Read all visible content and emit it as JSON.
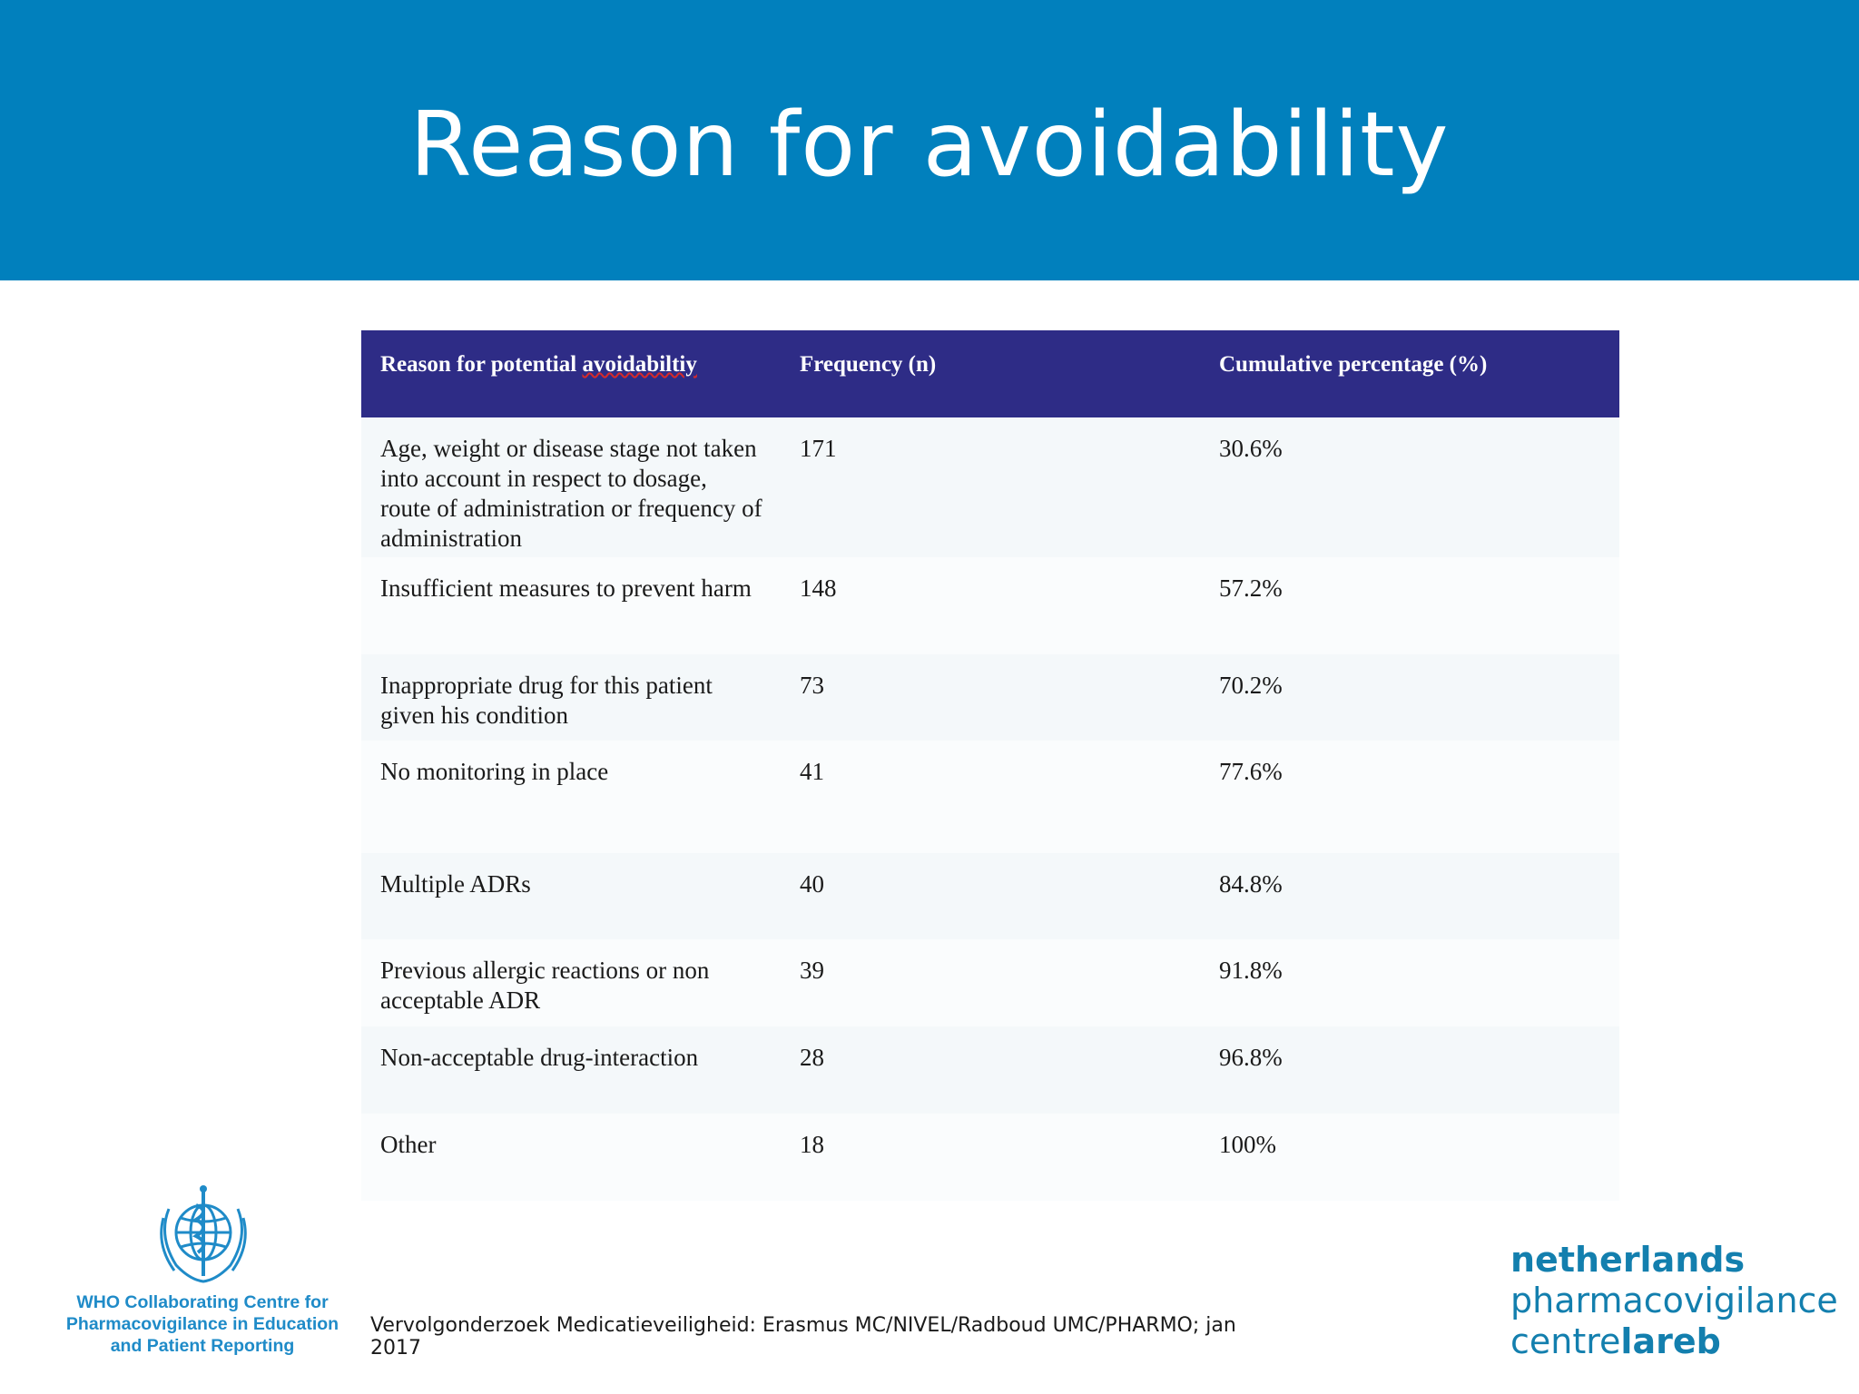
{
  "slide": {
    "title": "Reason for avoidability"
  },
  "table": {
    "headers": [
      "Reason for potential ",
      "avoidabiltiy",
      "Frequency (n)",
      "Cumulative percentage (%)"
    ],
    "rows": [
      {
        "reason": "Age, weight or disease stage not taken into account in respect to dosage, route of administration or frequency of administration",
        "frequency": "171",
        "cumulative": "30.6%"
      },
      {
        "reason": "Insufficient measures to prevent harm",
        "frequency": "148",
        "cumulative": "57.2%"
      },
      {
        "reason": "Inappropriate drug for this patient given his condition",
        "frequency": "73",
        "cumulative": "70.2%"
      },
      {
        "reason": "No monitoring in place",
        "frequency": "41",
        "cumulative": "77.6%"
      },
      {
        "reason": "Multiple ADRs",
        "frequency": "40",
        "cumulative": "84.8%"
      },
      {
        "reason": "Previous allergic reactions or non acceptable ADR",
        "frequency": "39",
        "cumulative": "91.8%"
      },
      {
        "reason": "Non-acceptable drug-interaction",
        "frequency": "28",
        "cumulative": "96.8%"
      },
      {
        "reason": "Other",
        "frequency": "18",
        "cumulative": "100%"
      }
    ]
  },
  "footer": {
    "who_caption": [
      "WHO Collaborating Centre for",
      "Pharmacovigilance in Education",
      "and Patient Reporting"
    ],
    "citation": "Vervolgonderzoek Medicatieveiligheid: Erasmus MC/NIVEL/Radboud UMC/PHARMO; jan 2017",
    "lareb_logo": {
      "line1": "netherlands",
      "line2": "pharmacovigilance",
      "line3a": "centre",
      "line3b": "lareb"
    }
  },
  "colors": {
    "header_bar": "#0180bd",
    "table_header": "#2e2c86",
    "who_blue": "#1f8bc8",
    "lareb_blue": "#137fae"
  },
  "icons": {
    "who": "who-emblem-icon"
  }
}
